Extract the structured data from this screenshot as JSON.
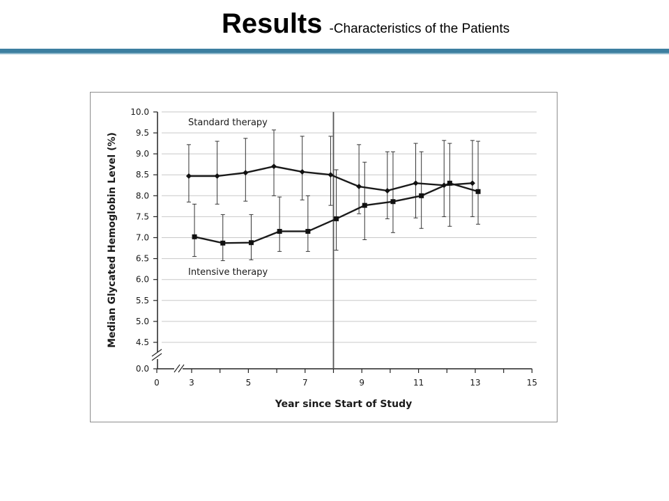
{
  "slide": {
    "title": "Results",
    "subtitle": "-Characteristics of the Patients",
    "accent_color": "#3d7fa0"
  },
  "chart_data": {
    "type": "line",
    "xlabel": "Year since Start of Study",
    "ylabel": "Median Glycated Hemoglobin Level (%)",
    "xlim": [
      0,
      15
    ],
    "ylim": [
      0.0,
      10.0
    ],
    "x_ticks": [
      0,
      3,
      5,
      7,
      9,
      11,
      13,
      15
    ],
    "y_ticks": [
      0.0,
      4.5,
      5.0,
      5.5,
      6.0,
      6.5,
      7.0,
      7.5,
      8.0,
      8.5,
      9.0,
      9.5,
      10.0
    ],
    "y_tick_labels": [
      "0.0",
      "4.5",
      "5.0",
      "5.5",
      "6.0",
      "6.5",
      "7.0",
      "7.5",
      "8.0",
      "8.5",
      "9.0",
      "9.5",
      "10.0"
    ],
    "axis_breaks": [
      "x between 0 and 3",
      "y between 0.0 and 4.5"
    ],
    "vertical_reference_line": 8,
    "grid": "horizontal",
    "legend": "inline labels",
    "series": [
      {
        "name": "Standard therapy",
        "marker": "diamond",
        "points": [
          {
            "x": 2.9,
            "y": 8.47,
            "lo": 7.85,
            "hi": 9.22
          },
          {
            "x": 3.9,
            "y": 8.47,
            "lo": 7.8,
            "hi": 9.3
          },
          {
            "x": 4.9,
            "y": 8.55,
            "lo": 7.87,
            "hi": 9.37
          },
          {
            "x": 5.9,
            "y": 8.7,
            "lo": 8.0,
            "hi": 9.57
          },
          {
            "x": 6.9,
            "y": 8.57,
            "lo": 7.9,
            "hi": 9.42
          },
          {
            "x": 7.9,
            "y": 8.5,
            "lo": 7.77,
            "hi": 9.42
          },
          {
            "x": 8.9,
            "y": 8.22,
            "lo": 7.57,
            "hi": 9.22
          },
          {
            "x": 9.9,
            "y": 8.12,
            "lo": 7.45,
            "hi": 9.05
          },
          {
            "x": 10.9,
            "y": 8.3,
            "lo": 7.47,
            "hi": 9.25
          },
          {
            "x": 11.9,
            "y": 8.25,
            "lo": 7.5,
            "hi": 9.32
          },
          {
            "x": 12.9,
            "y": 8.3,
            "lo": 7.5,
            "hi": 9.32
          }
        ]
      },
      {
        "name": "Intensive therapy",
        "marker": "square",
        "points": [
          {
            "x": 3.1,
            "y": 7.02,
            "lo": 6.55,
            "hi": 7.8
          },
          {
            "x": 4.1,
            "y": 6.87,
            "lo": 6.45,
            "hi": 7.55
          },
          {
            "x": 5.1,
            "y": 6.88,
            "lo": 6.47,
            "hi": 7.55
          },
          {
            "x": 6.1,
            "y": 7.15,
            "lo": 6.67,
            "hi": 7.97
          },
          {
            "x": 7.1,
            "y": 7.15,
            "lo": 6.67,
            "hi": 8.0
          },
          {
            "x": 8.1,
            "y": 7.45,
            "lo": 6.7,
            "hi": 8.62
          },
          {
            "x": 9.1,
            "y": 7.77,
            "lo": 6.95,
            "hi": 8.8
          },
          {
            "x": 10.1,
            "y": 7.86,
            "lo": 7.12,
            "hi": 9.05
          },
          {
            "x": 11.1,
            "y": 8.0,
            "lo": 7.22,
            "hi": 9.05
          },
          {
            "x": 12.1,
            "y": 8.3,
            "lo": 7.27,
            "hi": 9.25
          },
          {
            "x": 13.1,
            "y": 8.1,
            "lo": 7.32,
            "hi": 9.3
          }
        ]
      }
    ]
  }
}
